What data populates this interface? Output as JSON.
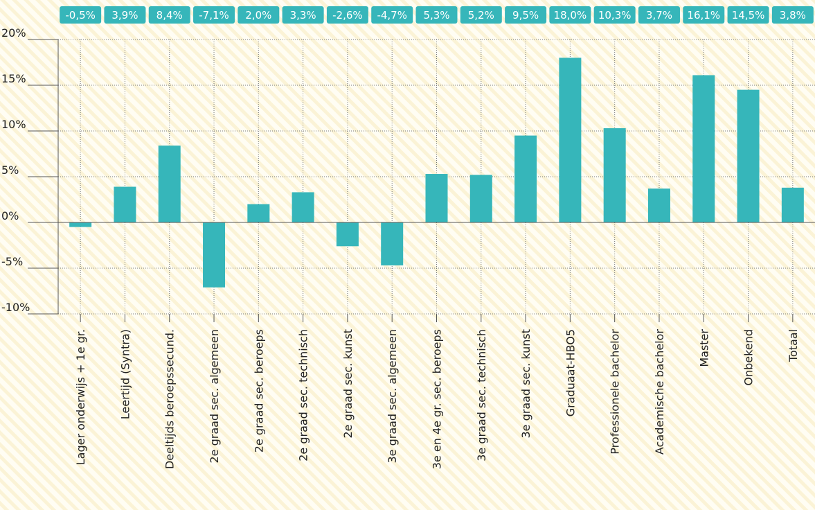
{
  "chart_data": {
    "type": "bar",
    "categories": [
      "Lager onderwijs + 1e gr.",
      "Leertijd (Syntra)",
      "Deeltijds beroepssecund.",
      "2e graad sec. algemeen",
      "2e graad sec. beroeps",
      "2e graad sec. technisch",
      "2e graad sec. kunst",
      "3e graad sec. algemeen",
      "3e en 4e gr. sec. beroeps",
      "3e graad sec. technisch",
      "3e graad sec. kunst",
      "Graduaat-HBO5",
      "Professionele bachelor",
      "Academische bachelor",
      "Master",
      "Onbekend",
      "Totaal"
    ],
    "values": [
      -0.5,
      3.9,
      8.4,
      -7.1,
      2.0,
      3.3,
      -2.6,
      -4.7,
      5.3,
      5.2,
      9.5,
      18.0,
      10.3,
      3.7,
      16.1,
      14.5,
      3.8
    ],
    "value_labels": [
      "-0,5%",
      "3,9%",
      "8,4%",
      "-7,1%",
      "2,0%",
      "3,3%",
      "-2,6%",
      "-4,7%",
      "5,3%",
      "5,2%",
      "9,5%",
      "18,0%",
      "10,3%",
      "3,7%",
      "16,1%",
      "14,5%",
      "3,8%"
    ],
    "color": "#36b6ba",
    "ylim": [
      -10,
      20
    ],
    "yticks": [
      {
        "value": -10,
        "label": "-10%"
      },
      {
        "value": -5,
        "label": "-5%"
      },
      {
        "value": 0,
        "label": "0%"
      },
      {
        "value": 5,
        "label": "5%"
      },
      {
        "value": 10,
        "label": "10%"
      },
      {
        "value": 15,
        "label": "15%"
      },
      {
        "value": 20,
        "label": "20%"
      }
    ],
    "grid": true
  }
}
